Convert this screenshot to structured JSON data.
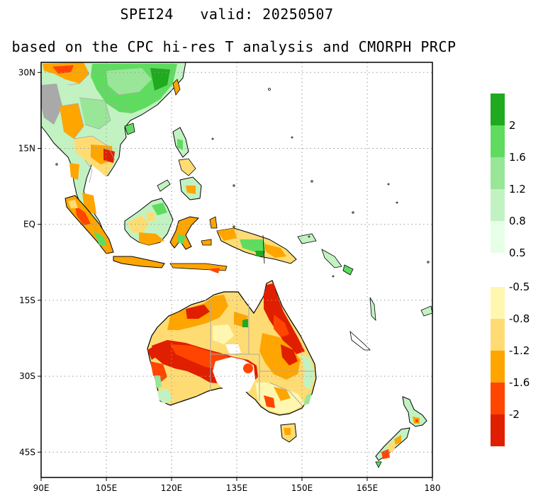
{
  "title_line1": "SPEI24   valid: 20250507",
  "title_line2": "based on the CPC hi-res T analysis and CMORPH PRCP",
  "map": {
    "lon_range": [
      90,
      180
    ],
    "lat_range": [
      -50,
      32
    ],
    "lon_ticks": [
      {
        "value": 90,
        "label": "90E"
      },
      {
        "value": 105,
        "label": "105E"
      },
      {
        "value": 120,
        "label": "120E"
      },
      {
        "value": 135,
        "label": "135E"
      },
      {
        "value": 150,
        "label": "150E"
      },
      {
        "value": 165,
        "label": "165E"
      },
      {
        "value": 180,
        "label": "180"
      }
    ],
    "lat_ticks": [
      {
        "value": 30,
        "label": "30N"
      },
      {
        "value": 15,
        "label": "15N"
      },
      {
        "value": 0,
        "label": "EQ"
      },
      {
        "value": -15,
        "label": "15S"
      },
      {
        "value": -30,
        "label": "30S"
      },
      {
        "value": -45,
        "label": "45S"
      }
    ],
    "grid": "dotted"
  },
  "colorbar_wet": {
    "colors": [
      "#e6ffe6",
      "#c2f2c2",
      "#99e699",
      "#5fdc5f",
      "#1faa1f"
    ],
    "labels": [
      "0.5",
      "0.8",
      "1.2",
      "1.6",
      "2"
    ]
  },
  "colorbar_dry": {
    "colors": [
      "#fff7b0",
      "#ffdc73",
      "#ffa500",
      "#ff4500",
      "#e01e00"
    ],
    "labels": [
      "-0.5",
      "-0.8",
      "-1.2",
      "-1.6",
      "-2"
    ]
  },
  "palette": {
    "land_normal": "#ffffff",
    "wet_light": "#c2f2c2",
    "wet_mid": "#5fdc5f",
    "wet_dark": "#1faa1f",
    "dry_light": "#fff7b0",
    "dry_mid": "#ffdc73",
    "dry_orange": "#ffa500",
    "dry_red": "#ff4500",
    "dry_darkred": "#e01e00",
    "grey": "#a9a9a9",
    "coast": "#000000"
  }
}
